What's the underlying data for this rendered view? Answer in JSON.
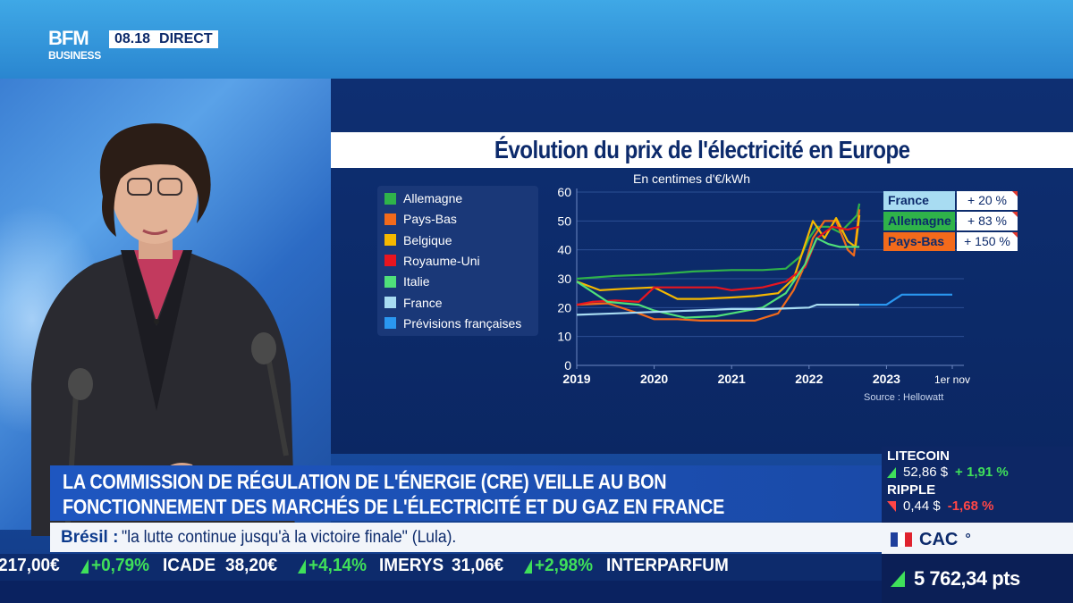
{
  "channel": {
    "logo_line1": "BFM",
    "logo_line2": "BUSINESS",
    "time": "08.18",
    "live_label": "DIRECT"
  },
  "chart_title": "Évolution du prix de l'électricité en Europe",
  "unit_label": "En centimes d'€/kWh",
  "source_label": "Source : Hellowatt",
  "legend": [
    {
      "name": "Allemagne",
      "color": "#2fb34a"
    },
    {
      "name": "Pays-Bas",
      "color": "#f26a1b"
    },
    {
      "name": "Belgique",
      "color": "#f5b800"
    },
    {
      "name": "Royaume-Uni",
      "color": "#e8151f"
    },
    {
      "name": "Italie",
      "color": "#4fe07a"
    },
    {
      "name": "France",
      "color": "#a8dcf2"
    },
    {
      "name": "Prévisions françaises",
      "color": "#2a97f0"
    }
  ],
  "badges": [
    {
      "name": "France",
      "value": "+ 20 %",
      "color": "#a8dcf2"
    },
    {
      "name": "Allemagne",
      "value": "+ 83 %",
      "color": "#2fb34a"
    },
    {
      "name": "Pays-Bas",
      "value": "+ 150 %",
      "color": "#f26a1b"
    }
  ],
  "chart_data": {
    "type": "line",
    "title": "Évolution du prix de l'électricité en Europe",
    "ylabel": "En centimes d'€/kWh",
    "ylim": [
      0,
      60
    ],
    "yticks": [
      0,
      10,
      20,
      30,
      40,
      50,
      60
    ],
    "xlim": [
      2019,
      2024.0
    ],
    "xticks": [
      {
        "value": 2019,
        "label": "2019"
      },
      {
        "value": 2020,
        "label": "2020"
      },
      {
        "value": 2021,
        "label": "2021"
      },
      {
        "value": 2022,
        "label": "2022"
      },
      {
        "value": 2023,
        "label": "2023"
      },
      {
        "value": 2023.85,
        "label": "1er nov"
      }
    ],
    "grid": true,
    "series": [
      {
        "name": "Allemagne",
        "color": "#2fb34a",
        "x": [
          2019,
          2019.5,
          2020,
          2020.5,
          2021,
          2021.4,
          2021.7,
          2021.9,
          2022.0,
          2022.1,
          2022.25,
          2022.4,
          2022.55,
          2022.62,
          2022.65
        ],
        "y": [
          30,
          31,
          31.5,
          32.5,
          33,
          33,
          33.5,
          38,
          44,
          48,
          48,
          46,
          50,
          52,
          56
        ]
      },
      {
        "name": "Pays-Bas",
        "color": "#f26a1b",
        "x": [
          2019,
          2019.4,
          2019.8,
          2020.0,
          2020.3,
          2020.6,
          2021.0,
          2021.3,
          2021.6,
          2021.8,
          2021.95,
          2022.05,
          2022.2,
          2022.35,
          2022.5,
          2022.58,
          2022.65
        ],
        "y": [
          21,
          21.5,
          18,
          16,
          16,
          15.5,
          15.5,
          15.5,
          18,
          26,
          35,
          44,
          50,
          50,
          40,
          38,
          54
        ]
      },
      {
        "name": "Belgique",
        "color": "#f5b800",
        "x": [
          2019,
          2019.3,
          2019.6,
          2020.0,
          2020.3,
          2020.6,
          2021.0,
          2021.3,
          2021.6,
          2021.8,
          2021.95,
          2022.05,
          2022.2,
          2022.35,
          2022.5,
          2022.6,
          2022.65
        ],
        "y": [
          29,
          26,
          26.5,
          27,
          23,
          23,
          23.5,
          24,
          25,
          30,
          42,
          50,
          44,
          51,
          43,
          41,
          52
        ]
      },
      {
        "name": "Royaume-Uni",
        "color": "#e8151f",
        "x": [
          2019,
          2019.2,
          2019.5,
          2019.8,
          2020.0,
          2020.4,
          2020.8,
          2021.0,
          2021.4,
          2021.7,
          2021.95,
          2022.1,
          2022.3,
          2022.5,
          2022.65
        ],
        "y": [
          21,
          22,
          22.5,
          22,
          27,
          27,
          27,
          26,
          27,
          29,
          34,
          44,
          48,
          47,
          48
        ]
      },
      {
        "name": "Italie",
        "color": "#4fe07a",
        "x": [
          2019,
          2019.4,
          2019.8,
          2020.0,
          2020.4,
          2020.8,
          2021.0,
          2021.4,
          2021.7,
          2021.95,
          2022.1,
          2022.25,
          2022.4,
          2022.55,
          2022.65
        ],
        "y": [
          29,
          22,
          21,
          19,
          16.5,
          17,
          18,
          20,
          25,
          35,
          44,
          42,
          41,
          41,
          41
        ]
      },
      {
        "name": "France",
        "color": "#a8dcf2",
        "x": [
          2019,
          2019.5,
          2020.0,
          2020.5,
          2021.0,
          2021.5,
          2022.0,
          2022.1,
          2022.3,
          2022.65
        ],
        "y": [
          17.5,
          18,
          18.5,
          19,
          19.5,
          19.5,
          20,
          21,
          21,
          21
        ]
      },
      {
        "name": "Prévisions françaises",
        "color": "#2a97f0",
        "x": [
          2022.65,
          2023.0,
          2023.2,
          2023.4,
          2023.85
        ],
        "y": [
          21,
          21,
          24.5,
          24.5,
          24.5
        ]
      }
    ]
  },
  "headline": {
    "line1": "LA COMMISSION DE RÉGULATION DE L'ÉNERGIE (CRE) VEILLE AU BON",
    "line2": "FONCTIONNEMENT DES MARCHÉS DE L'ÉLECTRICITÉ ET DU GAZ EN FRANCE"
  },
  "subbar": {
    "topic": "Brésil :",
    "text": "\"la lutte continue jusqu'à la victoire finale\" (Lula)."
  },
  "ticker": [
    {
      "text": "217,00€",
      "kind": "value"
    },
    {
      "text": "+0,79%",
      "kind": "up"
    },
    {
      "text": "ICADE",
      "kind": "name"
    },
    {
      "text": "38,20€",
      "kind": "value"
    },
    {
      "text": "+4,14%",
      "kind": "up"
    },
    {
      "text": "IMERYS",
      "kind": "name"
    },
    {
      "text": "31,06€",
      "kind": "value"
    },
    {
      "text": "+2,98%",
      "kind": "up"
    },
    {
      "text": "INTERPARFUM",
      "kind": "name"
    }
  ],
  "crypto": [
    {
      "name": "LITECOIN",
      "value": "52,86 $",
      "change": "+ 1,91 %",
      "direction": "up"
    },
    {
      "name": "RIPPLE",
      "value": "0,44 $",
      "change": "-1,68 %",
      "direction": "down"
    }
  ],
  "index": {
    "name": "CAC",
    "mark": "°",
    "value": "5 762,34 pts",
    "direction": "up"
  }
}
